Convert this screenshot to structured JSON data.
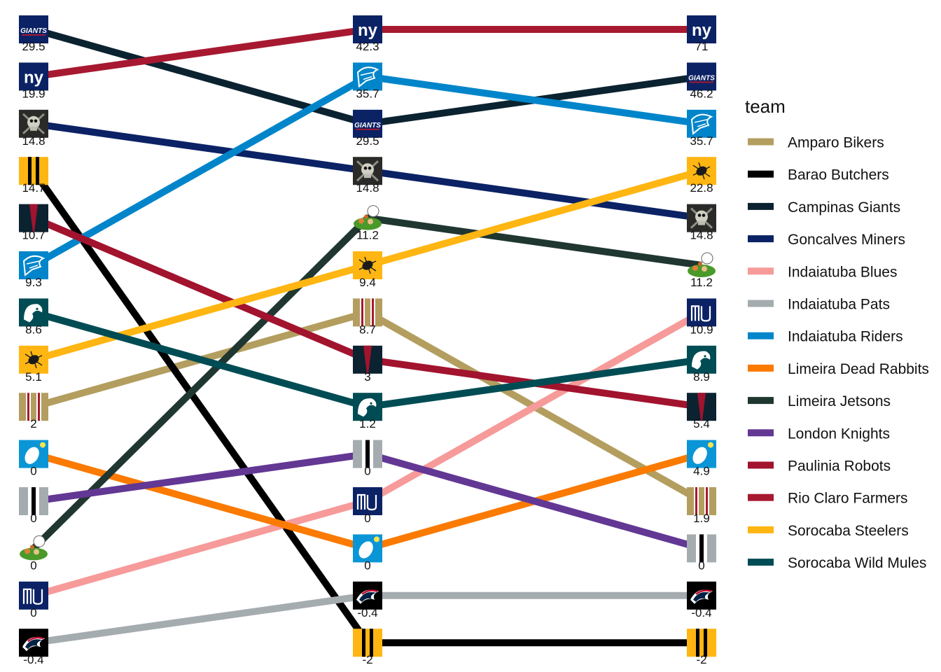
{
  "chart_data": {
    "type": "line",
    "legend_title": "team",
    "legend_position": "right",
    "grid": false,
    "x": [
      "",
      "",
      ""
    ],
    "series": [
      {
        "name": "Amparo Bikers",
        "color": "#b39e5f",
        "icon": "bikers-logo-icon",
        "ranks": [
          9,
          7,
          11
        ],
        "values": [
          "2",
          "8.7",
          "1.9"
        ]
      },
      {
        "name": "Barao Butchers",
        "color": "#000000",
        "icon": "butchers-logo-icon",
        "ranks": [
          4,
          14,
          14
        ],
        "values": [
          "14.7",
          "-2",
          "-2"
        ]
      },
      {
        "name": "Campinas Giants",
        "color": "#0b2230",
        "icon": "giants-logo-icon",
        "ranks": [
          1,
          3,
          2
        ],
        "values": [
          "29.5",
          "29.5",
          "46.2"
        ]
      },
      {
        "name": "Goncalves Miners",
        "color": "#0b2265",
        "icon": "miners-logo-icon",
        "ranks": [
          3,
          4,
          5
        ],
        "values": [
          "14.8",
          "14.8",
          "14.8"
        ]
      },
      {
        "name": "Indaiatuba Blues",
        "color": "#f79a9a",
        "icon": "blues-logo-icon",
        "ranks": [
          13,
          11,
          7
        ],
        "values": [
          "0",
          "0",
          "10.9"
        ]
      },
      {
        "name": "Indaiatuba Pats",
        "color": "#a5acaf",
        "icon": "pats-logo-icon",
        "ranks": [
          14,
          13,
          13
        ],
        "values": [
          "-0.4",
          "-0.4",
          "-0.4"
        ]
      },
      {
        "name": "Indaiatuba Riders",
        "color": "#0085ca",
        "icon": "riders-logo-icon",
        "ranks": [
          6,
          2,
          3
        ],
        "values": [
          "9.3",
          "35.7",
          "35.7"
        ]
      },
      {
        "name": "Limeira Dead Rabbits",
        "color": "#fb7a00",
        "icon": "dead-rabbits-logo-icon",
        "ranks": [
          10,
          12,
          10
        ],
        "values": [
          "0",
          "0",
          "4.9"
        ]
      },
      {
        "name": "Limeira Jetsons",
        "color": "#203731",
        "icon": "jetsons-logo-icon",
        "ranks": [
          12,
          5,
          6
        ],
        "values": [
          "0",
          "11.2",
          "11.2"
        ]
      },
      {
        "name": "London Knights",
        "color": "#633794",
        "icon": "knights-logo-icon",
        "ranks": [
          11,
          10,
          12
        ],
        "values": [
          "0",
          "0",
          "0"
        ]
      },
      {
        "name": "Paulinia Robots",
        "color": "#a2132e",
        "icon": "robots-logo-icon",
        "ranks": [
          5,
          8,
          9
        ],
        "values": [
          "10.7",
          "3",
          "5.4"
        ]
      },
      {
        "name": "Rio Claro Farmers",
        "color": "#a71930",
        "icon": "farmers-logo-icon",
        "ranks": [
          2,
          1,
          1
        ],
        "values": [
          "19.9",
          "42.3",
          "71"
        ]
      },
      {
        "name": "Sorocaba Steelers",
        "color": "#ffb612",
        "icon": "steelers-logo-icon",
        "ranks": [
          8,
          6,
          4
        ],
        "values": [
          "5.1",
          "9.4",
          "22.8"
        ]
      },
      {
        "name": "Sorocaba Wild Mules",
        "color": "#004c54",
        "icon": "wild-mules-logo-icon",
        "ranks": [
          7,
          9,
          8
        ],
        "values": [
          "8.6",
          "1.2",
          "8.9"
        ]
      }
    ]
  }
}
